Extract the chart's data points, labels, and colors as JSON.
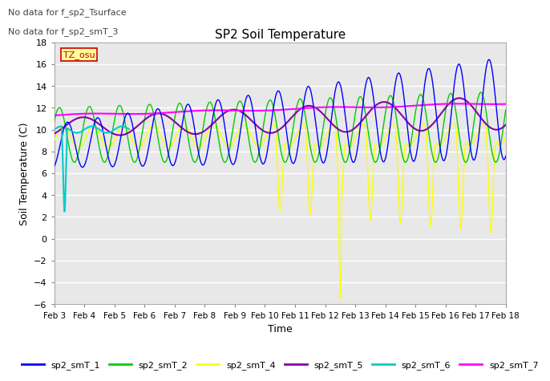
{
  "title": "SP2 Soil Temperature",
  "xlabel": "Time",
  "ylabel": "Soil Temperature (C)",
  "annotations": [
    "No data for f_sp2_Tsurface",
    "No data for f_sp2_smT_3"
  ],
  "tz_label": "TZ_osu",
  "ylim": [
    -6,
    18
  ],
  "yticks": [
    -6,
    -4,
    -2,
    0,
    2,
    4,
    6,
    8,
    10,
    12,
    14,
    16,
    18
  ],
  "xtick_labels": [
    "Feb 3",
    "Feb 4",
    "Feb 5",
    "Feb 6",
    "Feb 7",
    "Feb 8",
    "Feb 9",
    "Feb 10",
    "Feb 11",
    "Feb 12",
    "Feb 13",
    "Feb 14",
    "Feb 15",
    "Feb 16",
    "Feb 17",
    "Feb 18"
  ],
  "colors": {
    "sp2_smT_1": "#0000ff",
    "sp2_smT_2": "#00cc00",
    "sp2_smT_4": "#ffff00",
    "sp2_smT_5": "#8800aa",
    "sp2_smT_6": "#00cccc",
    "sp2_smT_7": "#ff00ff"
  },
  "fig_bg": "#ffffff",
  "plot_bg": "#e8e8e8",
  "grid_color": "#ffffff",
  "legend_labels": [
    "sp2_smT_1",
    "sp2_smT_2",
    "sp2_smT_4",
    "sp2_smT_5",
    "sp2_smT_6",
    "sp2_smT_7"
  ]
}
